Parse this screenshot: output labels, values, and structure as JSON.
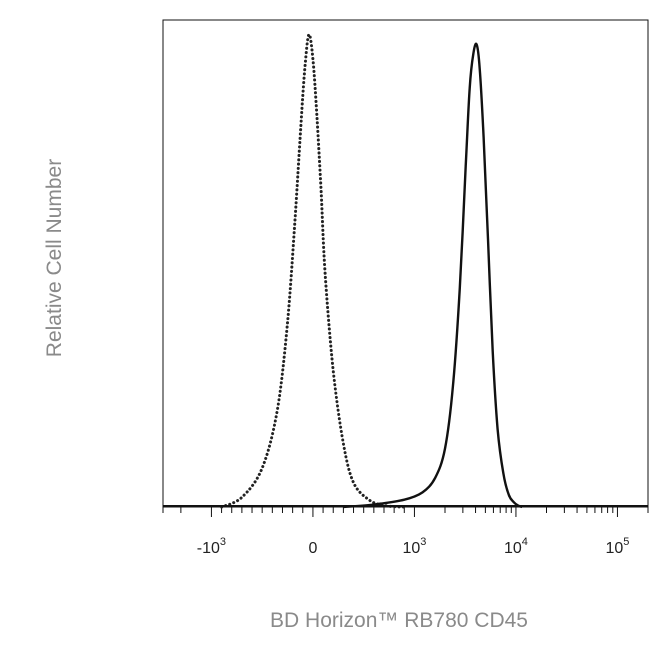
{
  "chart_data": {
    "type": "area",
    "xlabel": "BD Horizon™ RB780 CD45",
    "ylabel": "Relative Cell Number",
    "x_scale": "biexponential",
    "x_ticks": [
      {
        "value": -1000,
        "base": "-10",
        "exp": "3"
      },
      {
        "value": 0,
        "base": "0",
        "exp": ""
      },
      {
        "value": 1000,
        "base": "10",
        "exp": "3"
      },
      {
        "value": 10000,
        "base": "10",
        "exp": "4"
      },
      {
        "value": 100000,
        "base": "10",
        "exp": "5"
      }
    ],
    "xlim": [
      -3000,
      200000
    ],
    "ylim": [
      0,
      100
    ],
    "grid": false,
    "legend": "none",
    "series": [
      {
        "style": "dotted",
        "color": "#222222",
        "x": [
          -900,
          -700,
          -500,
          -350,
          -250,
          -180,
          -120,
          -80,
          -40,
          0,
          40,
          80,
          120,
          200,
          300,
          400,
          550,
          700,
          900
        ],
        "y": [
          0,
          2,
          8,
          20,
          38,
          58,
          78,
          90,
          97,
          92,
          80,
          65,
          48,
          28,
          13,
          5,
          1.5,
          0.3,
          0
        ]
      },
      {
        "style": "solid",
        "color": "#111111",
        "x": [
          300,
          600,
          900,
          1200,
          1600,
          2000,
          2400,
          2800,
          3200,
          3500,
          3800,
          4100,
          4400,
          4800,
          5300,
          5900,
          6600,
          7500,
          8500,
          9500,
          10500,
          11500
        ],
        "y": [
          0,
          0.5,
          1.5,
          3,
          6,
          12,
          25,
          45,
          70,
          86,
          93,
          95,
          90,
          76,
          55,
          32,
          16,
          7,
          2.5,
          1,
          0.3,
          0
        ]
      }
    ]
  }
}
